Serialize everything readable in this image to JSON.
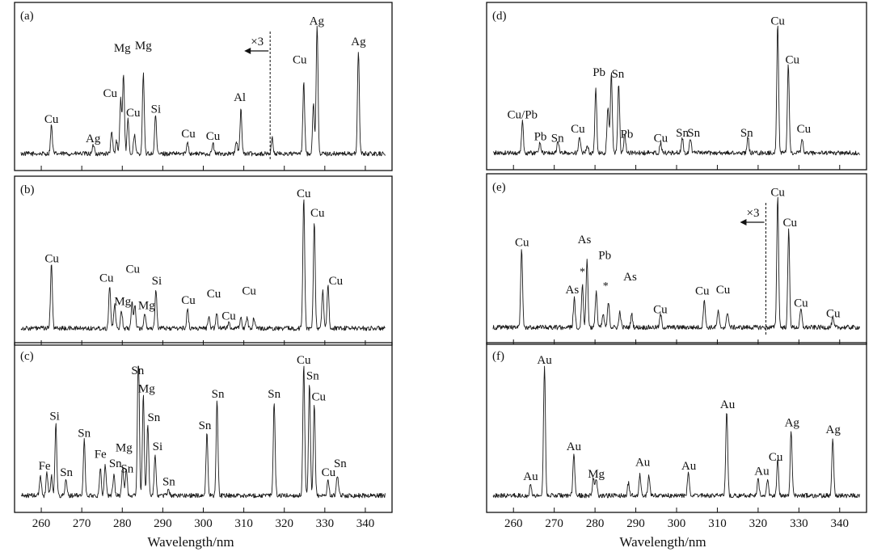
{
  "figure": {
    "xlabel_left": "Wavelength/nm",
    "xlabel_right": "Wavelength/nm"
  },
  "chart_data": [
    {
      "type": "line",
      "id": "a",
      "panel_label": "(a)",
      "xlim": [
        255,
        345
      ],
      "ylim": [
        0,
        1
      ],
      "xticks": [
        260,
        270,
        280,
        290,
        300,
        310,
        320,
        330,
        340
      ],
      "show_xticks": false,
      "peaks": [
        [
          262.5,
          0.22
        ],
        [
          272.9,
          0.07
        ],
        [
          277.4,
          0.16
        ],
        [
          278.6,
          0.1
        ],
        [
          279.6,
          0.42
        ],
        [
          280.3,
          0.62
        ],
        [
          281.4,
          0.26
        ],
        [
          283.0,
          0.15
        ],
        [
          285.2,
          0.62
        ],
        [
          288.2,
          0.3
        ],
        [
          296.1,
          0.1
        ],
        [
          302.4,
          0.08
        ],
        [
          309.3,
          0.34
        ],
        [
          308.2,
          0.1
        ],
        [
          317.0,
          0.12
        ],
        [
          324.8,
          0.55
        ],
        [
          328.1,
          1.0
        ],
        [
          327.2,
          0.4
        ],
        [
          338.3,
          0.8
        ]
      ],
      "labels": [
        {
          "t": "Cu",
          "x": 262.5,
          "y": 0.28
        },
        {
          "t": "Ag",
          "x": 272.8,
          "y": 0.13
        },
        {
          "t": "Cu",
          "x": 277.0,
          "y": 0.48
        },
        {
          "t": "Mg",
          "x": 280.0,
          "y": 0.83
        },
        {
          "t": "Cu",
          "x": 282.7,
          "y": 0.33
        },
        {
          "t": "Mg",
          "x": 285.2,
          "y": 0.85
        },
        {
          "t": "Si",
          "x": 288.3,
          "y": 0.36
        },
        {
          "t": "Cu",
          "x": 296.3,
          "y": 0.17
        },
        {
          "t": "Cu",
          "x": 302.4,
          "y": 0.15
        },
        {
          "t": "Al",
          "x": 309.0,
          "y": 0.45
        },
        {
          "t": "Cu",
          "x": 323.8,
          "y": 0.74
        },
        {
          "t": "Ag",
          "x": 328.0,
          "y": 1.04
        },
        {
          "t": "Ag",
          "x": 338.3,
          "y": 0.88
        }
      ],
      "annotation": {
        "text": "×3",
        "at": 316.5
      }
    },
    {
      "type": "line",
      "id": "b",
      "panel_label": "(b)",
      "xlim": [
        255,
        345
      ],
      "ylim": [
        0,
        1
      ],
      "xticks": [
        260,
        270,
        280,
        290,
        300,
        310,
        320,
        330,
        340
      ],
      "show_xticks": false,
      "peaks": [
        [
          262.5,
          0.5
        ],
        [
          276.9,
          0.34
        ],
        [
          278.1,
          0.18
        ],
        [
          279.8,
          0.14
        ],
        [
          282.4,
          0.2
        ],
        [
          283.1,
          0.18
        ],
        [
          285.6,
          0.12
        ],
        [
          288.3,
          0.3
        ],
        [
          296.1,
          0.15
        ],
        [
          301.4,
          0.1
        ],
        [
          303.3,
          0.12
        ],
        [
          306.3,
          0.05
        ],
        [
          309.3,
          0.08
        ],
        [
          310.8,
          0.08
        ],
        [
          312.5,
          0.08
        ],
        [
          324.8,
          1.0
        ],
        [
          327.4,
          0.82
        ],
        [
          329.5,
          0.3
        ],
        [
          330.8,
          0.32
        ]
      ],
      "labels": [
        {
          "t": "Cu",
          "x": 262.6,
          "y": 0.55
        },
        {
          "t": "Cu",
          "x": 276.1,
          "y": 0.4
        },
        {
          "t": "Mg",
          "x": 280.1,
          "y": 0.22
        },
        {
          "t": "Cu",
          "x": 282.6,
          "y": 0.47
        },
        {
          "t": "Mg",
          "x": 286.0,
          "y": 0.19
        },
        {
          "t": "Si",
          "x": 288.5,
          "y": 0.38
        },
        {
          "t": "Cu",
          "x": 296.3,
          "y": 0.23
        },
        {
          "t": "Cu",
          "x": 302.6,
          "y": 0.28
        },
        {
          "t": "Cu",
          "x": 306.3,
          "y": 0.11
        },
        {
          "t": "Cu",
          "x": 311.3,
          "y": 0.3
        },
        {
          "t": "Cu",
          "x": 324.8,
          "y": 1.05
        },
        {
          "t": "Cu",
          "x": 328.2,
          "y": 0.9
        },
        {
          "t": "Cu",
          "x": 332.7,
          "y": 0.38
        }
      ]
    },
    {
      "type": "line",
      "id": "c",
      "panel_label": "(c)",
      "xlim": [
        255,
        345
      ],
      "ylim": [
        0,
        1
      ],
      "xticks": [
        260,
        270,
        280,
        290,
        300,
        310,
        320,
        330,
        340
      ],
      "show_xticks": true,
      "peaks": [
        [
          259.8,
          0.15
        ],
        [
          261.4,
          0.18
        ],
        [
          262.5,
          0.15
        ],
        [
          263.6,
          0.55
        ],
        [
          266.1,
          0.12
        ],
        [
          270.6,
          0.42
        ],
        [
          274.6,
          0.2
        ],
        [
          275.8,
          0.24
        ],
        [
          277.9,
          0.16
        ],
        [
          280.1,
          0.22
        ],
        [
          281.0,
          0.2
        ],
        [
          283.9,
          0.25
        ],
        [
          284.0,
          0.9
        ],
        [
          285.2,
          0.76
        ],
        [
          286.3,
          0.55
        ],
        [
          288.1,
          0.32
        ],
        [
          291.4,
          0.06
        ],
        [
          300.9,
          0.48
        ],
        [
          303.4,
          0.72
        ],
        [
          317.5,
          0.72
        ],
        [
          324.8,
          1.0
        ],
        [
          326.2,
          0.85
        ],
        [
          327.4,
          0.7
        ],
        [
          330.8,
          0.12
        ],
        [
          333.1,
          0.16
        ]
      ],
      "labels": [
        {
          "t": "Fe",
          "x": 260.8,
          "y": 0.24
        },
        {
          "t": "Si",
          "x": 263.3,
          "y": 0.62
        },
        {
          "t": "Sn",
          "x": 266.2,
          "y": 0.19
        },
        {
          "t": "Sn",
          "x": 270.6,
          "y": 0.49
        },
        {
          "t": "Fe",
          "x": 274.6,
          "y": 0.33
        },
        {
          "t": "Mg",
          "x": 280.4,
          "y": 0.38
        },
        {
          "t": "Sn",
          "x": 278.3,
          "y": 0.26
        },
        {
          "t": "Sn",
          "x": 281.2,
          "y": 0.22
        },
        {
          "t": "Sn",
          "x": 283.8,
          "y": 0.97
        },
        {
          "t": "Mg",
          "x": 286.0,
          "y": 0.83
        },
        {
          "t": "Sn",
          "x": 287.8,
          "y": 0.61
        },
        {
          "t": "Si",
          "x": 288.7,
          "y": 0.39
        },
        {
          "t": "Sn",
          "x": 291.5,
          "y": 0.12
        },
        {
          "t": "Sn",
          "x": 300.4,
          "y": 0.55
        },
        {
          "t": "Sn",
          "x": 303.6,
          "y": 0.79
        },
        {
          "t": "Sn",
          "x": 317.5,
          "y": 0.79
        },
        {
          "t": "Cu",
          "x": 324.8,
          "y": 1.05
        },
        {
          "t": "Sn",
          "x": 327.0,
          "y": 0.93
        },
        {
          "t": "Cu",
          "x": 328.5,
          "y": 0.77
        },
        {
          "t": "Sn",
          "x": 333.8,
          "y": 0.26
        },
        {
          "t": "Cu",
          "x": 330.9,
          "y": 0.19
        }
      ]
    },
    {
      "type": "line",
      "id": "d",
      "panel_label": "(d)",
      "xlim": [
        255,
        345
      ],
      "ylim": [
        0,
        1
      ],
      "xticks": [
        260,
        270,
        280,
        290,
        300,
        310,
        320,
        330,
        340
      ],
      "show_xticks": false,
      "peaks": [
        [
          262.2,
          0.25
        ],
        [
          266.5,
          0.09
        ],
        [
          270.9,
          0.1
        ],
        [
          276.2,
          0.12
        ],
        [
          278.1,
          0.06
        ],
        [
          280.2,
          0.5
        ],
        [
          283.1,
          0.24
        ],
        [
          283.3,
          0.15
        ],
        [
          284.0,
          0.62
        ],
        [
          285.8,
          0.54
        ],
        [
          287.3,
          0.15
        ],
        [
          296.1,
          0.08
        ],
        [
          301.4,
          0.12
        ],
        [
          303.4,
          0.12
        ],
        [
          317.5,
          0.12
        ],
        [
          324.8,
          1.0
        ],
        [
          327.4,
          0.7
        ],
        [
          330.8,
          0.1
        ]
      ],
      "labels": [
        {
          "t": "Cu/Pb",
          "x": 262.2,
          "y": 0.31
        },
        {
          "t": "Pb",
          "x": 266.6,
          "y": 0.14
        },
        {
          "t": "Sn",
          "x": 270.8,
          "y": 0.13
        },
        {
          "t": "Cu",
          "x": 275.8,
          "y": 0.2
        },
        {
          "t": "Pb",
          "x": 281.0,
          "y": 0.64
        },
        {
          "t": "Sn",
          "x": 285.6,
          "y": 0.63
        },
        {
          "t": "Pb",
          "x": 287.8,
          "y": 0.16
        },
        {
          "t": "Cu",
          "x": 296.1,
          "y": 0.13
        },
        {
          "t": "Sn",
          "x": 301.4,
          "y": 0.17
        },
        {
          "t": "Sn",
          "x": 304.2,
          "y": 0.17
        },
        {
          "t": "Sn",
          "x": 317.2,
          "y": 0.17
        },
        {
          "t": "Cu",
          "x": 324.8,
          "y": 1.04
        },
        {
          "t": "Cu",
          "x": 328.4,
          "y": 0.74
        },
        {
          "t": "Cu",
          "x": 331.2,
          "y": 0.2
        }
      ]
    },
    {
      "type": "line",
      "id": "e",
      "panel_label": "(e)",
      "xlim": [
        255,
        345
      ],
      "ylim": [
        0,
        1
      ],
      "xticks": [
        260,
        270,
        280,
        290,
        300,
        310,
        320,
        330,
        340
      ],
      "show_xticks": false,
      "peaks": [
        [
          262.0,
          0.6
        ],
        [
          274.9,
          0.22
        ],
        [
          276.9,
          0.33
        ],
        [
          278.0,
          0.3
        ],
        [
          278.1,
          0.22
        ],
        [
          280.3,
          0.28
        ],
        [
          282.0,
          0.1
        ],
        [
          283.3,
          0.2
        ],
        [
          286.1,
          0.12
        ],
        [
          289.0,
          0.1
        ],
        [
          296.1,
          0.1
        ],
        [
          306.8,
          0.22
        ],
        [
          310.2,
          0.12
        ],
        [
          312.5,
          0.12
        ],
        [
          324.8,
          1.0
        ],
        [
          327.5,
          0.74
        ],
        [
          330.5,
          0.14
        ],
        [
          338.3,
          0.07
        ]
      ],
      "labels": [
        {
          "t": "Cu",
          "x": 262.1,
          "y": 0.66
        },
        {
          "t": "As",
          "x": 274.4,
          "y": 0.3
        },
        {
          "t": "As",
          "x": 277.4,
          "y": 0.68
        },
        {
          "t": "*",
          "x": 276.9,
          "y": 0.44
        },
        {
          "t": "Pb",
          "x": 282.4,
          "y": 0.56
        },
        {
          "t": "*",
          "x": 282.6,
          "y": 0.33
        },
        {
          "t": "As",
          "x": 288.6,
          "y": 0.4
        },
        {
          "t": "Cu",
          "x": 296.0,
          "y": 0.15
        },
        {
          "t": "Cu",
          "x": 306.3,
          "y": 0.29
        },
        {
          "t": "Cu",
          "x": 311.4,
          "y": 0.3
        },
        {
          "t": "Cu",
          "x": 324.8,
          "y": 1.04
        },
        {
          "t": "Cu",
          "x": 327.8,
          "y": 0.81
        },
        {
          "t": "Cu",
          "x": 330.5,
          "y": 0.2
        },
        {
          "t": "Cu",
          "x": 338.4,
          "y": 0.12
        }
      ],
      "annotation": {
        "text": "×3",
        "at": 321.9
      }
    },
    {
      "type": "line",
      "id": "f",
      "panel_label": "(f)",
      "xlim": [
        255,
        345
      ],
      "ylim": [
        0,
        1
      ],
      "xticks": [
        260,
        270,
        280,
        290,
        300,
        310,
        320,
        330,
        340
      ],
      "show_xticks": true,
      "peaks": [
        [
          264.2,
          0.1
        ],
        [
          267.6,
          1.0
        ],
        [
          274.8,
          0.32
        ],
        [
          279.6,
          0.14
        ],
        [
          280.3,
          0.12
        ],
        [
          288.2,
          0.1
        ],
        [
          291.0,
          0.16
        ],
        [
          293.2,
          0.16
        ],
        [
          302.9,
          0.18
        ],
        [
          312.3,
          0.66
        ],
        [
          320.0,
          0.12
        ],
        [
          322.3,
          0.12
        ],
        [
          324.8,
          0.27
        ],
        [
          328.1,
          0.5
        ],
        [
          338.3,
          0.45
        ]
      ],
      "labels": [
        {
          "t": "Au",
          "x": 264.2,
          "y": 0.16
        },
        {
          "t": "Au",
          "x": 267.6,
          "y": 1.05
        },
        {
          "t": "Au",
          "x": 274.8,
          "y": 0.39
        },
        {
          "t": "Mg",
          "x": 280.3,
          "y": 0.18
        },
        {
          "t": "Au",
          "x": 291.7,
          "y": 0.27
        },
        {
          "t": "Au",
          "x": 303.0,
          "y": 0.24
        },
        {
          "t": "Au",
          "x": 312.5,
          "y": 0.71
        },
        {
          "t": "Au",
          "x": 320.9,
          "y": 0.2
        },
        {
          "t": "Cu",
          "x": 324.3,
          "y": 0.31
        },
        {
          "t": "Ag",
          "x": 328.3,
          "y": 0.57
        },
        {
          "t": "Ag",
          "x": 338.4,
          "y": 0.52
        }
      ]
    }
  ]
}
